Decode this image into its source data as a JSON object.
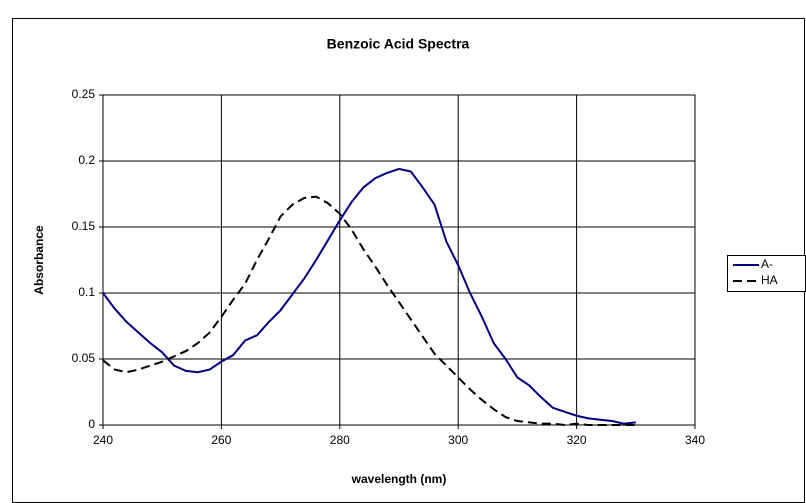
{
  "chart_data": {
    "type": "line",
    "title": "Benzoic Acid Spectra",
    "x_label": "wavelength (nm)",
    "y_label": "Absorbance",
    "x": [
      240,
      242,
      244,
      246,
      248,
      250,
      252,
      254,
      256,
      258,
      260,
      262,
      264,
      266,
      268,
      270,
      272,
      274,
      276,
      278,
      280,
      282,
      284,
      286,
      288,
      290,
      292,
      294,
      296,
      298,
      300,
      302,
      304,
      306,
      308,
      310,
      312,
      314,
      316,
      318,
      320,
      322,
      324,
      326,
      328,
      330
    ],
    "series": [
      {
        "name": "A-",
        "color": "#000080",
        "line_style": "solid",
        "values": [
          0.1,
          0.088,
          0.078,
          0.07,
          0.062,
          0.055,
          0.045,
          0.041,
          0.04,
          0.042,
          0.048,
          0.053,
          0.064,
          0.068,
          0.078,
          0.087,
          0.099,
          0.111,
          0.125,
          0.14,
          0.155,
          0.169,
          0.18,
          0.187,
          0.191,
          0.194,
          0.192,
          0.18,
          0.167,
          0.139,
          0.121,
          0.1,
          0.082,
          0.062,
          0.05,
          0.036,
          0.03,
          0.021,
          0.013,
          0.01,
          0.007,
          0.005,
          0.004,
          0.003,
          0.001,
          0.002
        ]
      },
      {
        "name": "HA",
        "color": "#000000",
        "line_style": "dashed",
        "values": [
          0.049,
          0.042,
          0.04,
          0.042,
          0.045,
          0.048,
          0.052,
          0.056,
          0.062,
          0.07,
          0.082,
          0.095,
          0.107,
          0.125,
          0.141,
          0.158,
          0.167,
          0.172,
          0.173,
          0.168,
          0.16,
          0.148,
          0.133,
          0.12,
          0.106,
          0.093,
          0.08,
          0.067,
          0.054,
          0.045,
          0.036,
          0.027,
          0.019,
          0.012,
          0.006,
          0.003,
          0.002,
          0.001,
          0.001,
          0,
          0.001,
          0,
          0,
          0,
          0,
          0
        ]
      }
    ],
    "xlim": [
      240,
      340
    ],
    "xticks": [
      240,
      260,
      280,
      300,
      320,
      340
    ],
    "ylim": [
      0,
      0.25
    ],
    "yticks": [
      0,
      0.05,
      0.1,
      0.15,
      0.2,
      0.25
    ],
    "grid": true,
    "legend": "right"
  }
}
